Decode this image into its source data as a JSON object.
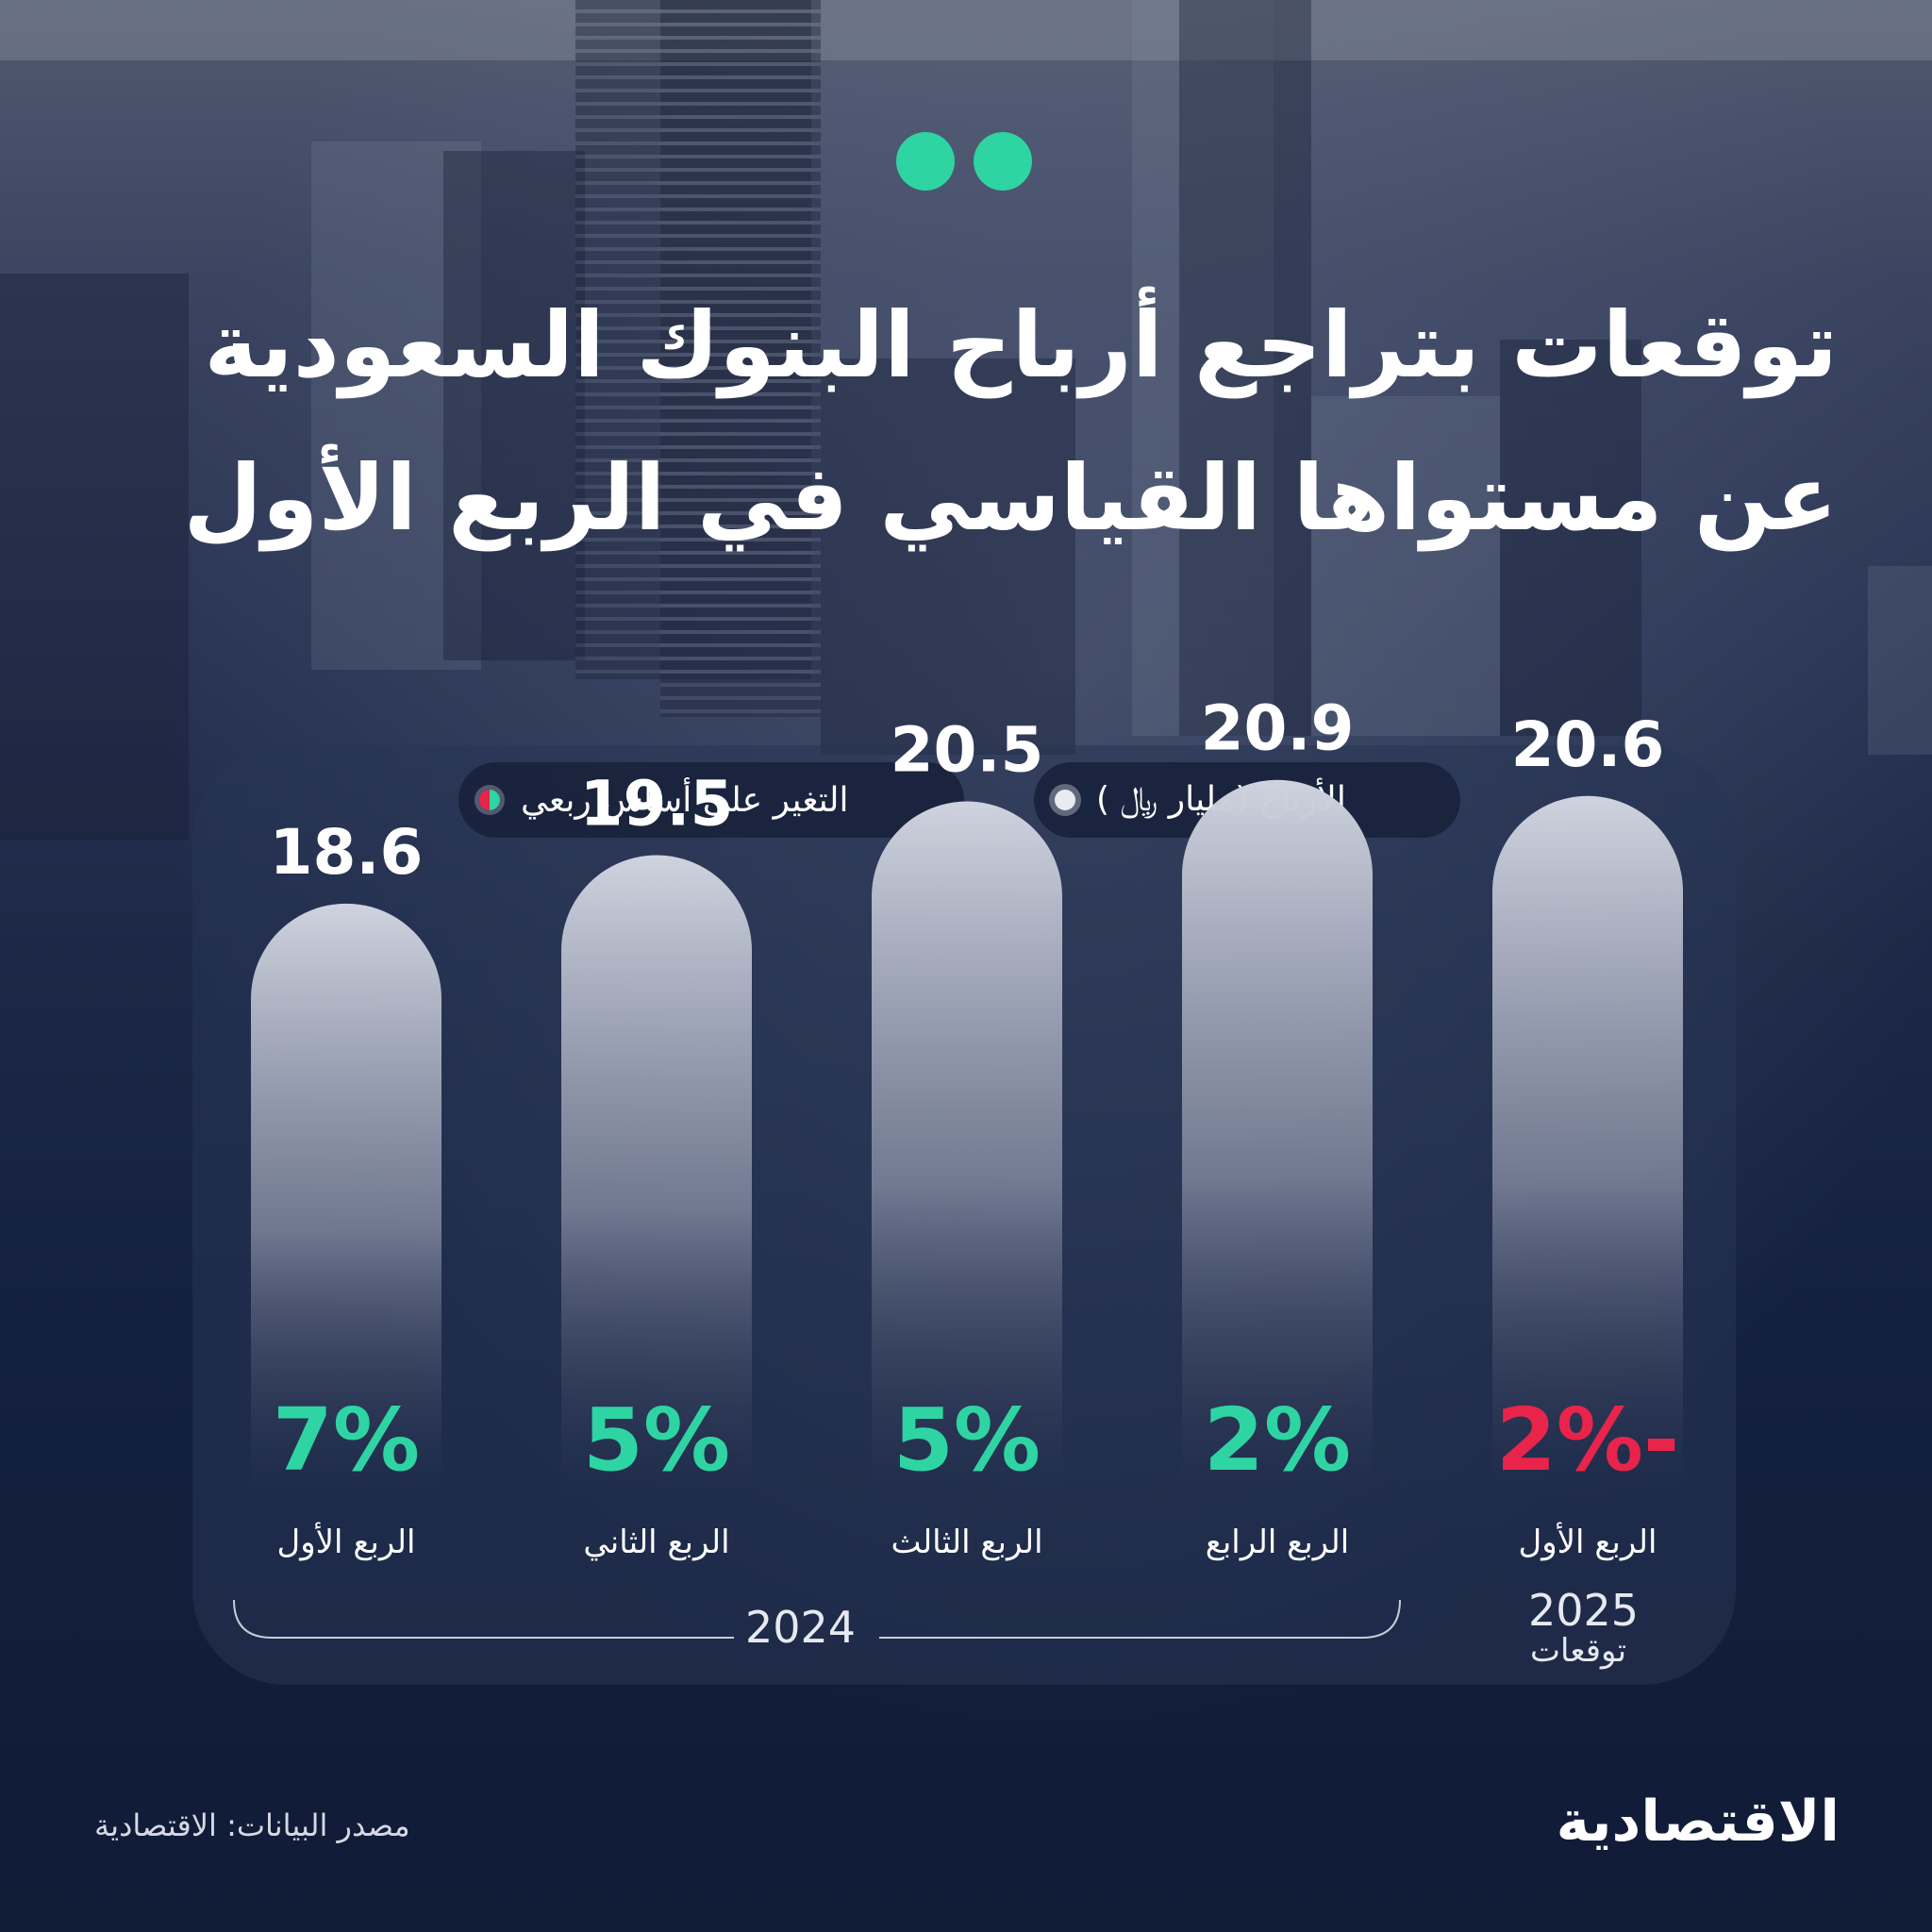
{
  "title": {
    "line1": "توقعات بتراجع أرباح البنوك السعودية",
    "line2": "عن مستواها القياسي في الربع الأول"
  },
  "legend": {
    "profits": "الأرباح (مليار ﷼ )",
    "change": "التغير على أساس ربعي"
  },
  "colors": {
    "positive": "#2fd4a3",
    "negative": "#e8244a",
    "bar_top": "#cfd3df",
    "bar_bottom": "#1e2a4a"
  },
  "chart_data": {
    "type": "bar",
    "categories": [
      "الربع الأول",
      "الربع الرابع",
      "الربع الثالث",
      "الربع الثاني",
      "الربع الأول"
    ],
    "years": [
      "2025",
      "2024",
      "2024",
      "2024",
      "2024"
    ],
    "series": [
      {
        "name": "الأرباح (مليار ﷼ )",
        "values": [
          20.6,
          20.9,
          20.5,
          19.5,
          18.6
        ]
      },
      {
        "name": "التغير على أساس ربعي",
        "values": [
          -2,
          2,
          5,
          5,
          7
        ]
      }
    ],
    "value_labels": [
      "20.6",
      "20.9",
      "20.5",
      "19.5",
      "18.6"
    ],
    "change_labels": [
      "-2%",
      "2%",
      "5%",
      "5%",
      "7%"
    ]
  },
  "axis": {
    "year_2024": "2024",
    "year_2025": "2025",
    "forecast": "توقعات"
  },
  "footer": {
    "source": "مصدر البيانات: الاقتصادية",
    "logo": "الاقتصادية"
  }
}
